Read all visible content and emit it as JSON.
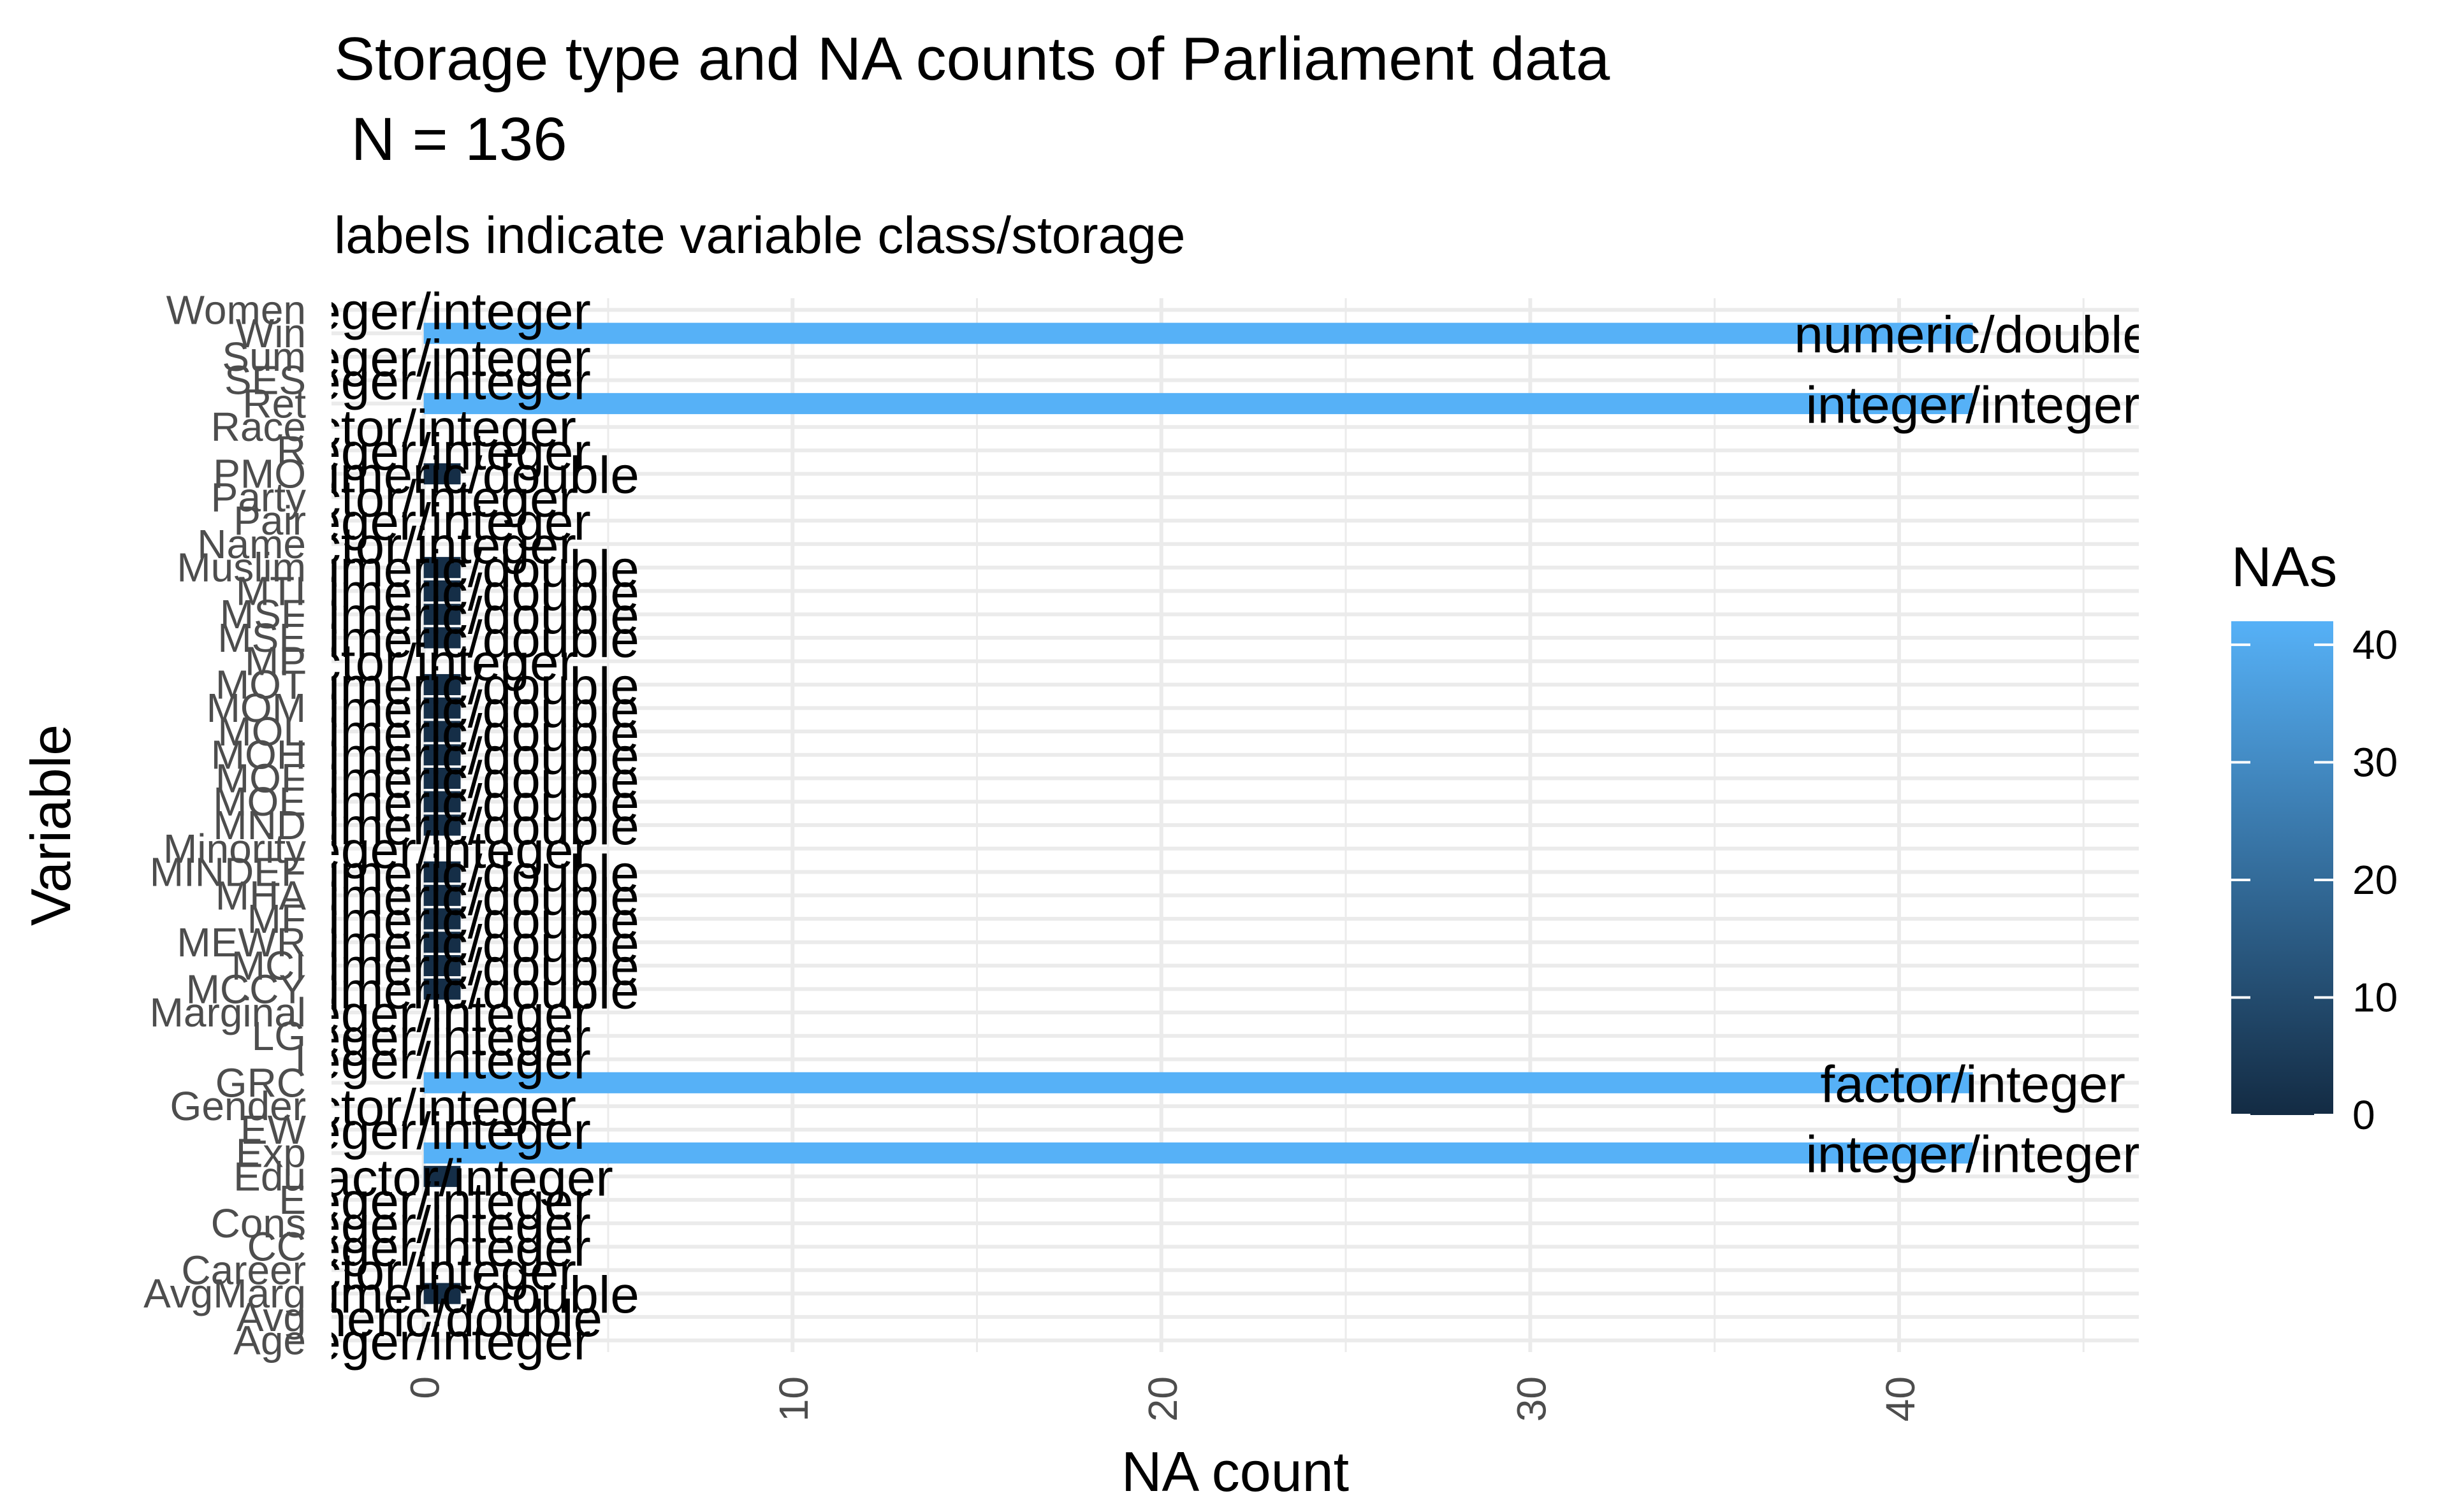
{
  "chart_data": {
    "type": "bar",
    "orientation": "horizontal",
    "title": "Storage type and NA counts of Parliament data",
    "title_line2": " N = 136",
    "subtitle": "labels indicate variable class/storage",
    "xlabel": "NA count",
    "ylabel": "Variable",
    "xlim": [
      -2.5,
      46.5
    ],
    "x_ticks": [
      0,
      10,
      20,
      30,
      40
    ],
    "grid": true,
    "legend": {
      "title": "NAs",
      "placement": "right",
      "ticks": [
        0,
        10,
        20,
        30,
        40
      ],
      "range": [
        0,
        42
      ],
      "low_color": "#132B43",
      "high_color": "#56B1F7"
    },
    "categories": [
      "Age",
      "Avg",
      "AvgMarg",
      "Career",
      "CC",
      "Cons",
      "E",
      "Edu",
      "Exp",
      "EW",
      "Gender",
      "GRC",
      "I",
      "LG",
      "Marginal",
      "MCCY",
      "MCI",
      "MEWR",
      "MF",
      "MHA",
      "MINDEF",
      "Minority",
      "MND",
      "MOE",
      "MOF",
      "MOH",
      "MOL",
      "MOM",
      "MOT",
      "MP",
      "MSE",
      "MSF",
      "MTI",
      "Muslim",
      "Name",
      "Pair",
      "Party",
      "PMO",
      "R",
      "Race",
      "Ret",
      "SES",
      "Sum",
      "Win",
      "Women"
    ],
    "values": [
      0,
      0,
      1,
      0,
      0,
      0,
      0,
      1,
      42,
      0,
      0,
      42,
      0,
      0,
      0,
      1,
      1,
      1,
      1,
      1,
      1,
      0,
      1,
      1,
      1,
      1,
      1,
      1,
      1,
      0,
      1,
      1,
      1,
      1,
      0,
      0,
      0,
      1,
      0,
      0,
      42,
      0,
      0,
      42,
      0
    ],
    "labels": [
      "integer/integer",
      "numeric/double",
      "numeric/double",
      "factor/integer",
      "integer/integer",
      "integer/integer",
      "integer/integer",
      "factor/integer",
      "integer/integer",
      "integer/integer",
      "factor/integer",
      "factor/integer",
      "integer/integer",
      "integer/integer",
      "integer/integer",
      "numeric/double",
      "numeric/double",
      "numeric/double",
      "numeric/double",
      "numeric/double",
      "numeric/double",
      "integer/integer",
      "numeric/double",
      "numeric/double",
      "numeric/double",
      "numeric/double",
      "numeric/double",
      "numeric/double",
      "numeric/double",
      "factor/integer",
      "numeric/double",
      "numeric/double",
      "numeric/double",
      "numeric/double",
      "factor/integer",
      "integer/integer",
      "factor/integer",
      "numeric/double",
      "integer/integer",
      "factor/integer",
      "integer/integer",
      "integer/integer",
      "integer/integer",
      "numeric/double",
      "integer/integer"
    ]
  }
}
